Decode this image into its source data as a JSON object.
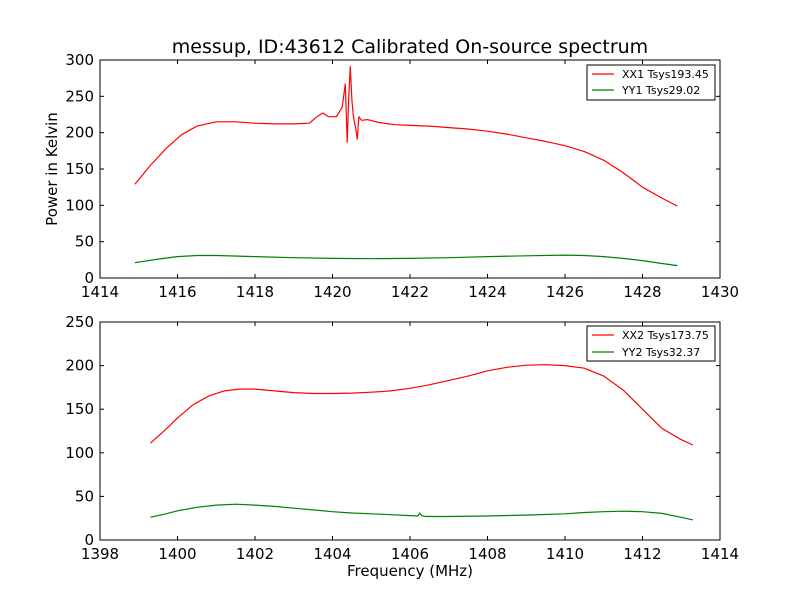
{
  "chart_data": [
    {
      "type": "line",
      "title": "messup, ID:43612 Calibrated On-source spectrum",
      "xlabel": "",
      "ylabel": "Power in Kelvin",
      "xlim": [
        1414,
        1430
      ],
      "ylim": [
        0,
        300
      ],
      "xticks": [
        1414,
        1416,
        1418,
        1420,
        1422,
        1424,
        1426,
        1428,
        1430
      ],
      "yticks": [
        0,
        50,
        100,
        150,
        200,
        250,
        300
      ],
      "grid": false,
      "legend": "top-right",
      "series": [
        {
          "name": "XX1 Tsys193.45",
          "color": "#ff0000",
          "x": [
            1414.9,
            1415.3,
            1415.7,
            1416.1,
            1416.5,
            1417.0,
            1417.5,
            1418.0,
            1418.5,
            1419.0,
            1419.4,
            1419.6,
            1419.75,
            1419.9,
            1420.1,
            1420.25,
            1420.33,
            1420.38,
            1420.42,
            1420.46,
            1420.5,
            1420.54,
            1420.6,
            1420.64,
            1420.68,
            1420.75,
            1420.9,
            1421.2,
            1421.6,
            1422.0,
            1422.5,
            1423.0,
            1423.5,
            1424.0,
            1424.5,
            1425.0,
            1425.5,
            1426.0,
            1426.5,
            1427.0,
            1427.5,
            1428.0,
            1428.5,
            1428.9
          ],
          "y": [
            129,
            155,
            178,
            197,
            209,
            215,
            215,
            213,
            212,
            212,
            213,
            222,
            227,
            222,
            222,
            235,
            267,
            187,
            250,
            291,
            245,
            222,
            206,
            191,
            222,
            217,
            218,
            214,
            211,
            210,
            209,
            207,
            205,
            202,
            198,
            193,
            188,
            182,
            174,
            162,
            145,
            125,
            110,
            99
          ]
        },
        {
          "name": "YY1 Tsys29.02",
          "color": "#008000",
          "x": [
            1414.9,
            1415.5,
            1416.0,
            1416.5,
            1417.0,
            1418.0,
            1419.0,
            1420.0,
            1421.0,
            1422.0,
            1423.0,
            1424.0,
            1425.0,
            1426.0,
            1426.5,
            1427.0,
            1427.5,
            1428.0,
            1428.5,
            1428.9
          ],
          "y": [
            21,
            26,
            29.5,
            31,
            31,
            29.5,
            28,
            27,
            26.5,
            27,
            28,
            29.5,
            30.5,
            31.5,
            31,
            29.5,
            27,
            24,
            20,
            17
          ]
        }
      ]
    },
    {
      "type": "line",
      "title": "",
      "xlabel": "Frequency (MHz)",
      "ylabel": "",
      "xlim": [
        1398,
        1414
      ],
      "ylim": [
        0,
        250
      ],
      "xticks": [
        1398,
        1400,
        1402,
        1404,
        1406,
        1408,
        1410,
        1412,
        1414
      ],
      "yticks": [
        0,
        50,
        100,
        150,
        200,
        250
      ],
      "grid": false,
      "legend": "top-right",
      "series": [
        {
          "name": "XX2 Tsys173.75",
          "color": "#ff0000",
          "x": [
            1399.3,
            1399.7,
            1400.0,
            1400.4,
            1400.8,
            1401.2,
            1401.6,
            1402.0,
            1402.5,
            1403.0,
            1403.5,
            1404.0,
            1404.5,
            1405.0,
            1405.5,
            1406.0,
            1406.5,
            1407.0,
            1407.5,
            1408.0,
            1408.5,
            1409.0,
            1409.5,
            1410.0,
            1410.5,
            1411.0,
            1411.5,
            1412.0,
            1412.5,
            1413.0,
            1413.3
          ],
          "y": [
            111,
            127,
            140,
            155,
            165,
            171,
            173,
            173,
            171,
            169,
            168,
            168,
            168.5,
            169.5,
            171,
            174,
            178,
            183,
            188,
            194,
            198,
            200.5,
            201,
            200,
            197,
            188,
            172,
            150,
            128,
            115,
            109
          ]
        },
        {
          "name": "YY2 Tsys32.37",
          "color": "#008000",
          "x": [
            1399.3,
            1399.7,
            1400.0,
            1400.5,
            1401.0,
            1401.5,
            1402.0,
            1402.5,
            1403.0,
            1403.5,
            1404.0,
            1404.5,
            1405.0,
            1405.5,
            1406.0,
            1406.2,
            1406.25,
            1406.3,
            1406.4,
            1406.5,
            1407.0,
            1408.0,
            1409.0,
            1410.0,
            1410.5,
            1411.0,
            1411.5,
            1412.0,
            1412.5,
            1413.0,
            1413.3
          ],
          "y": [
            26,
            30,
            33.5,
            37.5,
            40,
            41,
            40,
            38.5,
            36.5,
            34.5,
            32.5,
            31,
            30,
            29,
            28,
            27.5,
            31,
            28,
            27,
            27,
            27,
            27.5,
            28.5,
            30,
            31.5,
            32.5,
            33,
            32.5,
            30.5,
            26,
            23
          ]
        }
      ]
    }
  ]
}
